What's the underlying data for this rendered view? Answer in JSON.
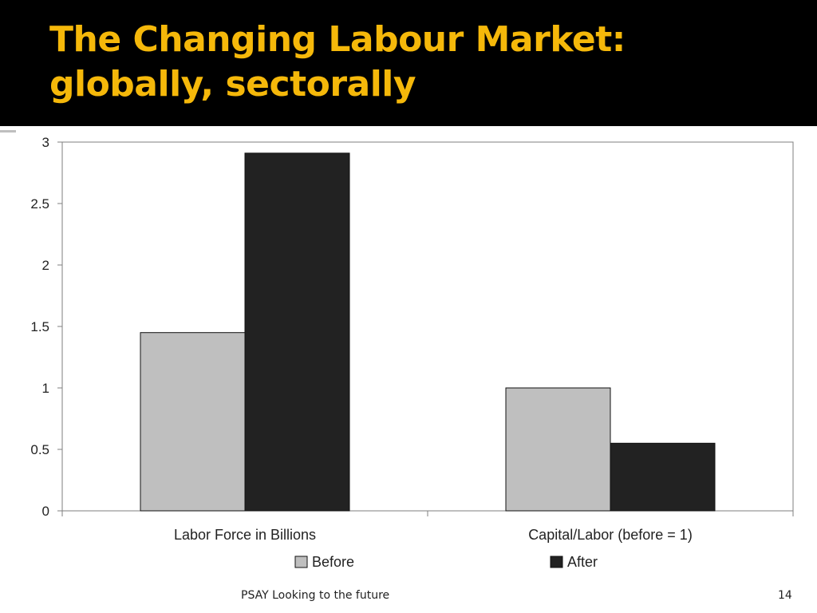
{
  "slide": {
    "title_line1": "The Changing Labour Market:",
    "title_line2": "globally, sectorally",
    "footer": "PSAY Looking to the future",
    "page_number": "14"
  },
  "colors": {
    "title_band": "#000000",
    "title_text": "#f5b80a",
    "before": "#bfbfbf",
    "after": "#222222"
  },
  "chart_data": {
    "type": "bar",
    "categories": [
      "Labor Force in Billions",
      "Capital/Labor (before = 1)"
    ],
    "series": [
      {
        "name": "Before",
        "values": [
          1.45,
          1.0
        ]
      },
      {
        "name": "After",
        "values": [
          2.91,
          0.55
        ]
      }
    ],
    "title": "",
    "xlabel": "",
    "ylabel": "",
    "ylim": [
      0,
      3
    ],
    "yticks": [
      "0",
      "0.5",
      "1",
      "1.5",
      "2",
      "2.5",
      "3"
    ],
    "grid": false,
    "legend_position": "bottom"
  }
}
